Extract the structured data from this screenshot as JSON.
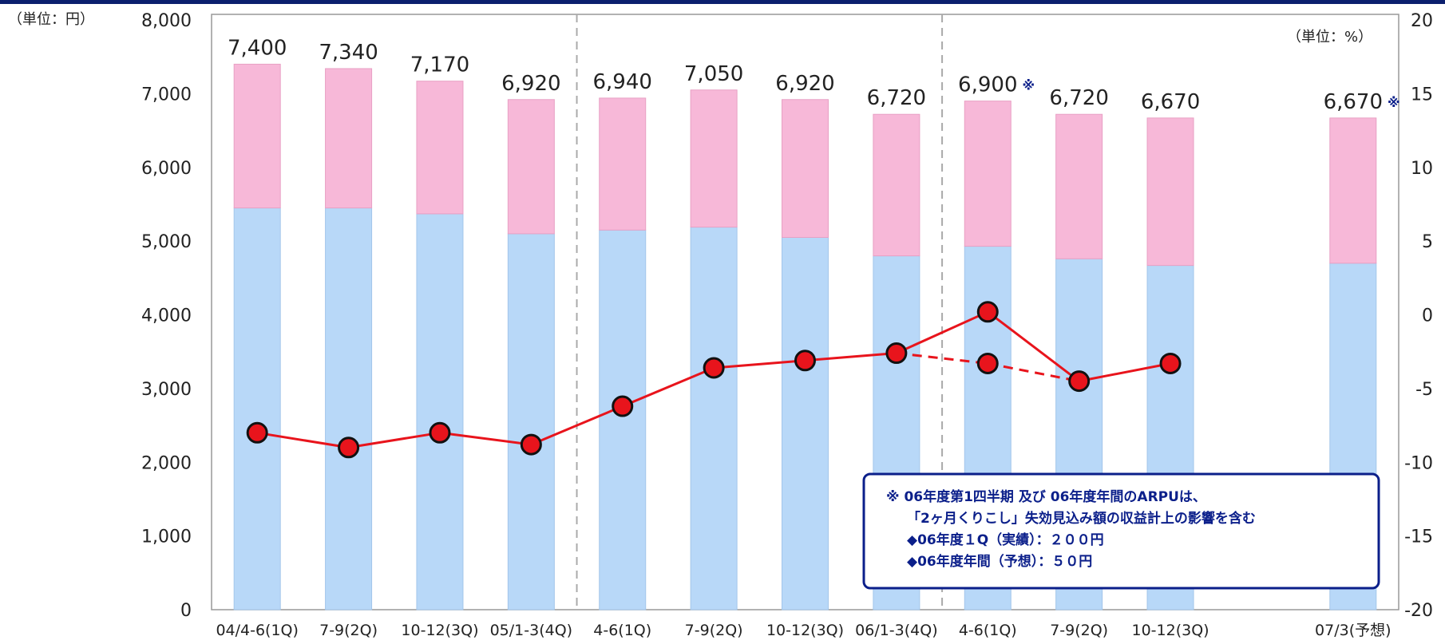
{
  "chart_data": {
    "type": "bar",
    "stacked": true,
    "left_unit_label": "（単位：円）",
    "right_unit_label": "（単位：%）",
    "left_axis": {
      "min": 0,
      "max": 8000,
      "step": 1000,
      "tick_labels": [
        "0",
        "1,000",
        "2,000",
        "3,000",
        "4,000",
        "5,000",
        "6,000",
        "7,000",
        "8,000"
      ]
    },
    "right_axis": {
      "min": -20,
      "max": 20,
      "step": 5,
      "tick_labels": [
        "-20",
        "-15",
        "-10",
        "-5",
        "0",
        "5",
        "10",
        "15",
        "20"
      ]
    },
    "categories": [
      "04/4-6(1Q)",
      "7-9(2Q)",
      "10-12(3Q)",
      "05/1-3(4Q)",
      "4-6(1Q)",
      "7-9(2Q)",
      "10-12(3Q)",
      "06/1-3(4Q)",
      "4-6(1Q)",
      "7-9(2Q)",
      "10-12(3Q)",
      "",
      "07/3(予想)"
    ],
    "series": [
      {
        "values": [
          5450,
          5450,
          5370,
          5100,
          5150,
          5190,
          5050,
          4800,
          4930,
          4760,
          4670,
          null,
          4700
        ],
        "color": "#b8d8f8"
      },
      {
        "values": [
          1950,
          1890,
          1800,
          1820,
          1790,
          1860,
          1870,
          1920,
          1970,
          1960,
          2000,
          null,
          1970
        ],
        "color": "#f7b8d8"
      },
      {
        "type": "line",
        "axis": "right",
        "color": "#e8141c",
        "values": [
          -8,
          -9,
          -8,
          -8.8,
          -6.2,
          -3.6,
          -3.1,
          -2.6,
          0.2,
          -4.5,
          -3.3,
          null,
          null
        ],
        "dashed_branch": {
          "from_index": 7,
          "via_index": 8,
          "via_value": -3.3,
          "to_index": 9
        }
      }
    ],
    "totals": [
      "7,400",
      "7,340",
      "7,170",
      "6,920",
      "6,940",
      "7,050",
      "6,920",
      "6,720",
      "6,900",
      "6,720",
      "6,670",
      "",
      "6,670"
    ],
    "total_marks": [
      "",
      "",
      "",
      "",
      "",
      "",
      "",
      "",
      "※",
      "",
      "",
      "",
      "※"
    ],
    "dividers_after_index": [
      3,
      7
    ],
    "note_box": {
      "lines": [
        "※ 06年度第1四半期 及び 06年度年間のARPUは、",
        "「2ヶ月くりこし」失効見込み額の収益計上の影響を含む",
        "◆06年度１Q（実績）：２００円",
        "◆06年度年間（予想）：５０円"
      ]
    }
  }
}
